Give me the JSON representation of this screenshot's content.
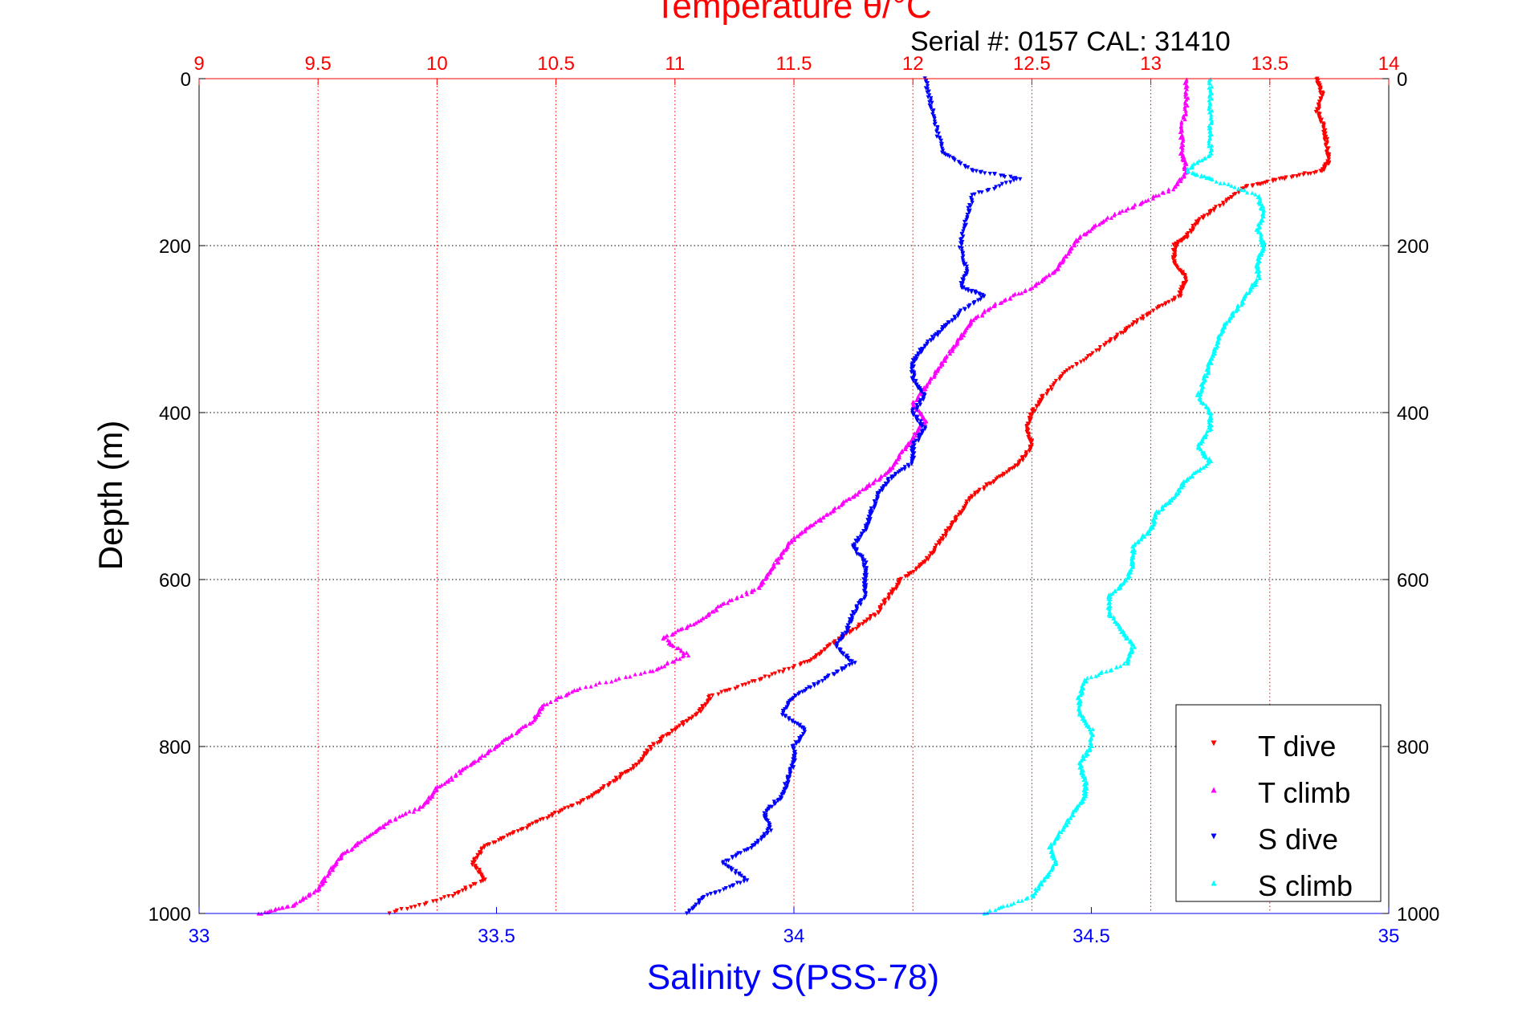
{
  "chart_data": {
    "type": "scatter",
    "title": "Temperature θ/°C",
    "subtitle": "Serial #: 0157  CAL: 31410",
    "xlabel_bottom": "Salinity S(PSS-78)",
    "xlabel_top": "Temperature θ/°C",
    "ylabel": "Depth (m)",
    "ylim": [
      1000,
      0
    ],
    "xlim_bottom": [
      33,
      35
    ],
    "xlim_top": [
      9,
      14
    ],
    "y_ticks": [
      "0",
      "200",
      "400",
      "600",
      "800",
      "1000"
    ],
    "x_bottom_ticks": [
      "33",
      "33.5",
      "34",
      "34.5",
      "35"
    ],
    "x_top_ticks": [
      "9",
      "9.5",
      "10",
      "10.5",
      "11",
      "11.5",
      "12",
      "12.5",
      "13",
      "13.5",
      "14"
    ],
    "grid": true,
    "legend_position": "bottom-right",
    "colors": {
      "temperature_axis": "#ff0000",
      "salinity_axis": "#0000ff",
      "t_dive": "#ff0000",
      "t_climb": "#ff00ff",
      "s_dive": "#0000ff",
      "s_climb": "#00ffff"
    },
    "series": [
      {
        "name": "T dive",
        "axis": "temperature",
        "color": "#ff0000",
        "marker": "down-triangle",
        "points": [
          [
            13.7,
            0
          ],
          [
            13.72,
            20
          ],
          [
            13.7,
            40
          ],
          [
            13.73,
            60
          ],
          [
            13.74,
            80
          ],
          [
            13.75,
            100
          ],
          [
            13.72,
            110
          ],
          [
            13.55,
            120
          ],
          [
            13.4,
            130
          ],
          [
            13.3,
            150
          ],
          [
            13.2,
            170
          ],
          [
            13.15,
            190
          ],
          [
            13.1,
            200
          ],
          [
            13.1,
            220
          ],
          [
            13.15,
            240
          ],
          [
            13.12,
            260
          ],
          [
            13.0,
            280
          ],
          [
            12.9,
            300
          ],
          [
            12.8,
            320
          ],
          [
            12.65,
            350
          ],
          [
            12.55,
            380
          ],
          [
            12.5,
            400
          ],
          [
            12.48,
            420
          ],
          [
            12.5,
            440
          ],
          [
            12.45,
            460
          ],
          [
            12.35,
            480
          ],
          [
            12.25,
            500
          ],
          [
            12.2,
            520
          ],
          [
            12.15,
            540
          ],
          [
            12.1,
            560
          ],
          [
            12.05,
            580
          ],
          [
            11.95,
            600
          ],
          [
            11.9,
            620
          ],
          [
            11.85,
            640
          ],
          [
            11.75,
            660
          ],
          [
            11.65,
            680
          ],
          [
            11.55,
            700
          ],
          [
            11.35,
            720
          ],
          [
            11.15,
            740
          ],
          [
            11.1,
            760
          ],
          [
            11.0,
            780
          ],
          [
            10.9,
            800
          ],
          [
            10.85,
            820
          ],
          [
            10.75,
            840
          ],
          [
            10.65,
            860
          ],
          [
            10.5,
            880
          ],
          [
            10.35,
            900
          ],
          [
            10.2,
            920
          ],
          [
            10.15,
            940
          ],
          [
            10.2,
            960
          ],
          [
            10.05,
            980
          ],
          [
            9.8,
            1000
          ]
        ]
      },
      {
        "name": "T climb",
        "axis": "temperature",
        "color": "#ff00ff",
        "marker": "up-triangle",
        "points": [
          [
            13.15,
            0
          ],
          [
            13.15,
            30
          ],
          [
            13.13,
            60
          ],
          [
            13.13,
            90
          ],
          [
            13.15,
            110
          ],
          [
            13.1,
            130
          ],
          [
            12.95,
            150
          ],
          [
            12.8,
            170
          ],
          [
            12.7,
            190
          ],
          [
            12.65,
            210
          ],
          [
            12.6,
            230
          ],
          [
            12.5,
            250
          ],
          [
            12.35,
            270
          ],
          [
            12.25,
            290
          ],
          [
            12.2,
            310
          ],
          [
            12.15,
            330
          ],
          [
            12.1,
            350
          ],
          [
            12.05,
            370
          ],
          [
            12.0,
            390
          ],
          [
            12.05,
            410
          ],
          [
            12.0,
            430
          ],
          [
            11.95,
            450
          ],
          [
            11.9,
            470
          ],
          [
            11.8,
            490
          ],
          [
            11.7,
            510
          ],
          [
            11.6,
            530
          ],
          [
            11.5,
            550
          ],
          [
            11.45,
            570
          ],
          [
            11.4,
            590
          ],
          [
            11.35,
            610
          ],
          [
            11.2,
            630
          ],
          [
            11.1,
            650
          ],
          [
            10.95,
            670
          ],
          [
            11.05,
            690
          ],
          [
            10.9,
            710
          ],
          [
            10.6,
            730
          ],
          [
            10.45,
            750
          ],
          [
            10.4,
            770
          ],
          [
            10.3,
            790
          ],
          [
            10.2,
            810
          ],
          [
            10.1,
            830
          ],
          [
            10.0,
            850
          ],
          [
            9.95,
            870
          ],
          [
            9.8,
            890
          ],
          [
            9.7,
            910
          ],
          [
            9.6,
            930
          ],
          [
            9.55,
            950
          ],
          [
            9.5,
            970
          ],
          [
            9.4,
            990
          ],
          [
            9.25,
            1000
          ]
        ]
      },
      {
        "name": "S dive",
        "axis": "salinity",
        "color": "#0000ff",
        "marker": "down-triangle",
        "points": [
          [
            34.22,
            0
          ],
          [
            34.23,
            30
          ],
          [
            34.24,
            60
          ],
          [
            34.25,
            90
          ],
          [
            34.3,
            110
          ],
          [
            34.38,
            120
          ],
          [
            34.3,
            140
          ],
          [
            34.29,
            170
          ],
          [
            34.28,
            200
          ],
          [
            34.29,
            230
          ],
          [
            34.28,
            250
          ],
          [
            34.32,
            260
          ],
          [
            34.28,
            280
          ],
          [
            34.25,
            300
          ],
          [
            34.22,
            320
          ],
          [
            34.2,
            340
          ],
          [
            34.2,
            360
          ],
          [
            34.22,
            380
          ],
          [
            34.2,
            400
          ],
          [
            34.22,
            420
          ],
          [
            34.2,
            440
          ],
          [
            34.2,
            460
          ],
          [
            34.16,
            480
          ],
          [
            34.14,
            500
          ],
          [
            34.13,
            520
          ],
          [
            34.12,
            540
          ],
          [
            34.1,
            560
          ],
          [
            34.12,
            580
          ],
          [
            34.12,
            600
          ],
          [
            34.12,
            620
          ],
          [
            34.1,
            640
          ],
          [
            34.09,
            660
          ],
          [
            34.07,
            680
          ],
          [
            34.1,
            700
          ],
          [
            34.05,
            720
          ],
          [
            34.0,
            740
          ],
          [
            33.98,
            760
          ],
          [
            34.02,
            780
          ],
          [
            34.0,
            800
          ],
          [
            34.0,
            820
          ],
          [
            33.99,
            840
          ],
          [
            33.98,
            860
          ],
          [
            33.95,
            880
          ],
          [
            33.96,
            900
          ],
          [
            33.93,
            920
          ],
          [
            33.88,
            940
          ],
          [
            33.92,
            960
          ],
          [
            33.85,
            980
          ],
          [
            33.82,
            1000
          ]
        ]
      },
      {
        "name": "S climb",
        "axis": "salinity",
        "color": "#00ffff",
        "marker": "up-triangle",
        "points": [
          [
            34.7,
            0
          ],
          [
            34.7,
            30
          ],
          [
            34.7,
            60
          ],
          [
            34.7,
            90
          ],
          [
            34.66,
            110
          ],
          [
            34.7,
            120
          ],
          [
            34.78,
            140
          ],
          [
            34.79,
            160
          ],
          [
            34.78,
            180
          ],
          [
            34.79,
            200
          ],
          [
            34.78,
            220
          ],
          [
            34.78,
            240
          ],
          [
            34.76,
            260
          ],
          [
            34.74,
            280
          ],
          [
            34.72,
            300
          ],
          [
            34.71,
            320
          ],
          [
            34.7,
            340
          ],
          [
            34.69,
            360
          ],
          [
            34.68,
            380
          ],
          [
            34.7,
            400
          ],
          [
            34.7,
            420
          ],
          [
            34.68,
            440
          ],
          [
            34.7,
            460
          ],
          [
            34.66,
            480
          ],
          [
            34.64,
            500
          ],
          [
            34.61,
            520
          ],
          [
            34.6,
            540
          ],
          [
            34.57,
            560
          ],
          [
            34.57,
            580
          ],
          [
            34.56,
            600
          ],
          [
            34.53,
            620
          ],
          [
            34.53,
            640
          ],
          [
            34.55,
            660
          ],
          [
            34.57,
            680
          ],
          [
            34.56,
            700
          ],
          [
            34.49,
            720
          ],
          [
            34.48,
            740
          ],
          [
            34.48,
            760
          ],
          [
            34.5,
            780
          ],
          [
            34.5,
            800
          ],
          [
            34.48,
            820
          ],
          [
            34.49,
            840
          ],
          [
            34.49,
            860
          ],
          [
            34.47,
            880
          ],
          [
            34.45,
            900
          ],
          [
            34.43,
            920
          ],
          [
            34.44,
            940
          ],
          [
            34.42,
            960
          ],
          [
            34.4,
            980
          ],
          [
            34.32,
            1000
          ]
        ]
      }
    ]
  }
}
